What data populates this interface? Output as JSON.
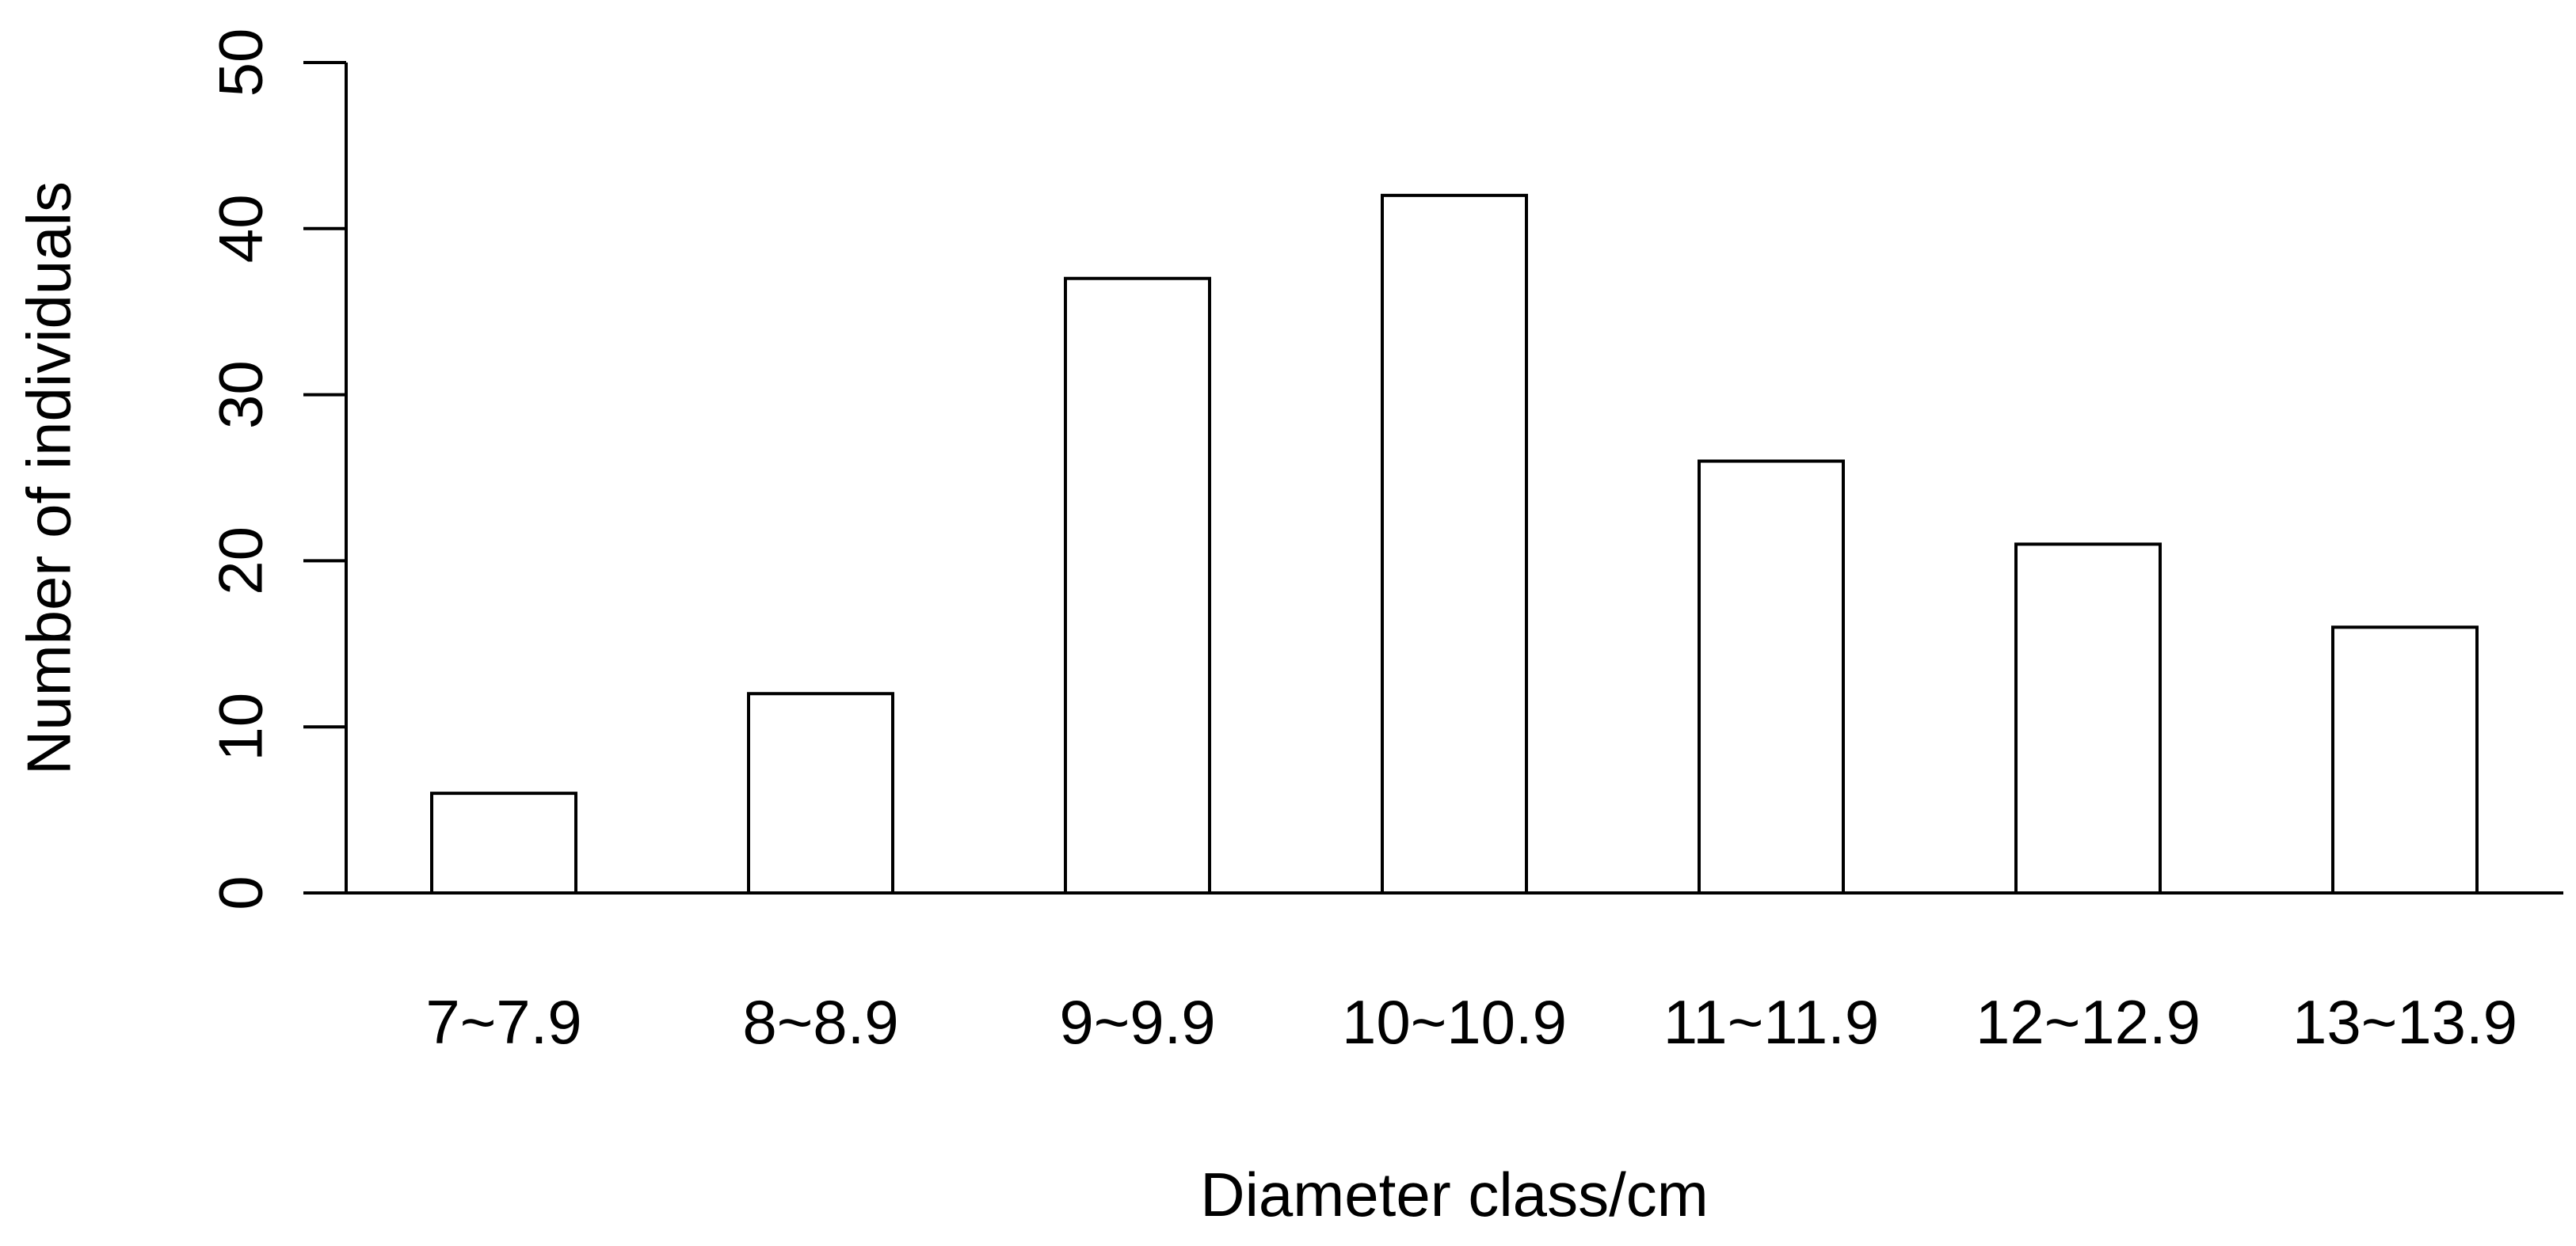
{
  "chart_data": {
    "type": "bar",
    "title": "",
    "xlabel": "Diameter class/cm",
    "ylabel": "Number of individuals",
    "categories": [
      "7~7.9",
      "8~8.9",
      "9~9.9",
      "10~10.9",
      "11~11.9",
      "12~12.9",
      "13~13.9"
    ],
    "values": [
      6,
      12,
      37,
      42,
      26,
      21,
      16
    ],
    "ylim": [
      0,
      50
    ],
    "yticks": [
      "0",
      "10",
      "20",
      "30",
      "40",
      "50"
    ],
    "grid": false,
    "bar_fill": "#ffffff",
    "bar_stroke": "#000000"
  }
}
